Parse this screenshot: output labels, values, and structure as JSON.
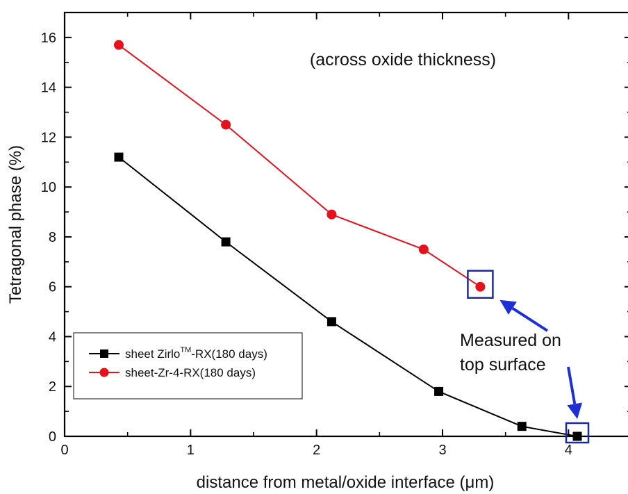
{
  "chart_data": {
    "type": "line",
    "xlabel": "distance from metal/oxide interface (μm)",
    "ylabel": "Tetragonal phase (%)",
    "xlim": [
      0,
      4.5
    ],
    "ylim": [
      0,
      17
    ],
    "xticks": [
      "0",
      "1",
      "2",
      "3",
      "4"
    ],
    "yticks": [
      "0",
      "2",
      "4",
      "6",
      "8",
      "10",
      "12",
      "14",
      "16"
    ],
    "grid": false,
    "legend_position": "bottom-left",
    "series": [
      {
        "name": "sheet Zirlo™-RX(180 days)",
        "legend_base": "sheet Zirlo",
        "legend_sup": "TM",
        "legend_rest": "-RX(180 days)",
        "marker": "square",
        "color": "#000000",
        "x": [
          0.43,
          1.28,
          2.12,
          2.97,
          3.63,
          4.07
        ],
        "y": [
          11.2,
          7.8,
          4.6,
          1.8,
          0.4,
          0.0
        ]
      },
      {
        "name": "sheet-Zr-4-RX(180 days)",
        "marker": "circle",
        "color": "#e8111b",
        "x": [
          0.43,
          1.28,
          2.12,
          2.85,
          3.3
        ],
        "y": [
          15.7,
          12.5,
          8.9,
          7.5,
          6.0
        ]
      }
    ],
    "annotations": {
      "subtitle": "(across oxide thickness)",
      "callout_line1": "Measured on",
      "callout_line2": "top surface",
      "highlight_color": "#1a2a9c",
      "arrow_color": "#1f2fd6"
    }
  }
}
